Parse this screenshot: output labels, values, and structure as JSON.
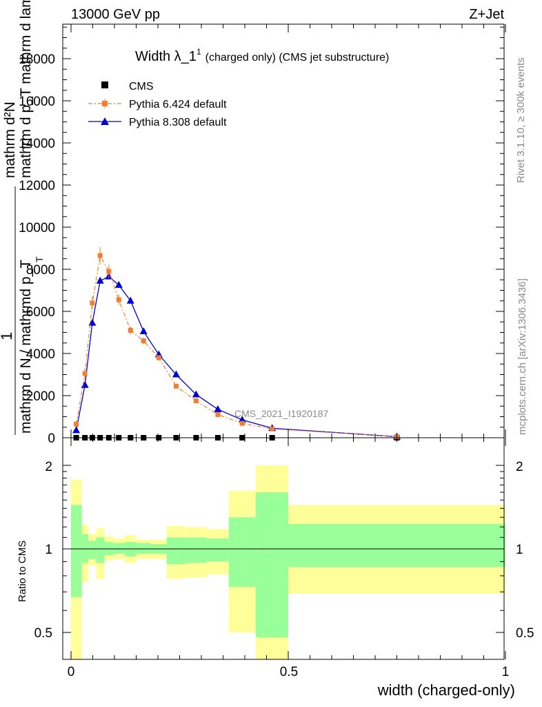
{
  "header": {
    "left": "13000 GeV pp",
    "right": "Z+Jet"
  },
  "side": {
    "rivet": "Rivet 3.1.10, ≥ 300k events",
    "mcplots": "mcplots.cern.ch [arXiv:1306.3436]"
  },
  "main": {
    "title_main": "Width λ_1",
    "title_sup": "1",
    "title_suffix": "(charged only) (CMS jet substructure)",
    "ylabel_one": "1",
    "ylabel_top": "mathrm dN / mathrmd p_T mathrm d lambda",
    "ylabel_top_line1": "mathrm d²N",
    "ylabel_top_line2": "mathrm d p_T mathrm d lambda",
    "ylabel_bottom": "mathrm d N / mathrmd p_T",
    "ylabel_bottom_sub": "T",
    "watermark": "CMS_2021_I1920187",
    "yticks": [
      "0",
      "2000",
      "4000",
      "6000",
      "8000",
      "10000",
      "12000",
      "14000",
      "16000",
      "18000"
    ]
  },
  "legend": {
    "cms": "CMS",
    "py6": "Pythia 6.424 default",
    "py8": "Pythia 8.308 default"
  },
  "ratio": {
    "ylabel": "Ratio to CMS",
    "yticks": [
      "0.5",
      "1",
      "2"
    ]
  },
  "xaxis": {
    "label": "width (charged-only)",
    "ticks": [
      "0",
      "0.5",
      "1"
    ]
  },
  "colors": {
    "cms": "#000000",
    "py6": "#f07f30",
    "py8": "#0000d0",
    "band_inner": "#99ff99",
    "band_outer": "#ffff99"
  },
  "chart_data": {
    "type": "line",
    "xlim": [
      0,
      1
    ],
    "ylim": [
      0,
      19600
    ],
    "ratio_ylim": [
      0.4,
      2.3
    ],
    "bins": [
      {
        "lo": 0.0,
        "hi": 0.025,
        "cms": 0
      },
      {
        "lo": 0.025,
        "hi": 0.04,
        "cms": 0
      },
      {
        "lo": 0.04,
        "hi": 0.058,
        "cms": 0
      },
      {
        "lo": 0.058,
        "hi": 0.077,
        "cms": 0
      },
      {
        "lo": 0.077,
        "hi": 0.098,
        "cms": 0
      },
      {
        "lo": 0.098,
        "hi": 0.123,
        "cms": 0
      },
      {
        "lo": 0.123,
        "hi": 0.15,
        "cms": 0
      },
      {
        "lo": 0.15,
        "hi": 0.183,
        "cms": 0
      },
      {
        "lo": 0.183,
        "hi": 0.22,
        "cms": 0
      },
      {
        "lo": 0.22,
        "hi": 0.264,
        "cms": 0
      },
      {
        "lo": 0.264,
        "hi": 0.312,
        "cms": 0
      },
      {
        "lo": 0.312,
        "hi": 0.363,
        "cms": 0
      },
      {
        "lo": 0.363,
        "hi": 0.425,
        "cms": 0
      },
      {
        "lo": 0.425,
        "hi": 0.5,
        "cms": 0
      },
      {
        "lo": 0.5,
        "hi": 1.0,
        "cms": 0
      }
    ],
    "series": [
      {
        "name": "Pythia 6.424 default",
        "x": [
          0.012,
          0.032,
          0.049,
          0.067,
          0.087,
          0.11,
          0.137,
          0.167,
          0.202,
          0.242,
          0.288,
          0.338,
          0.394,
          0.463,
          0.75
        ],
        "y": [
          650,
          3050,
          6400,
          8650,
          7900,
          6550,
          5100,
          4600,
          3800,
          2450,
          1750,
          1100,
          680,
          420,
          50
        ],
        "yerr": [
          90,
          250,
          320,
          400,
          320,
          250,
          200,
          170,
          140,
          100,
          80,
          60,
          40,
          30,
          10
        ]
      },
      {
        "name": "Pythia 8.308 default",
        "x": [
          0.012,
          0.032,
          0.049,
          0.067,
          0.087,
          0.11,
          0.137,
          0.167,
          0.202,
          0.242,
          0.288,
          0.338,
          0.394,
          0.463,
          0.75
        ],
        "y": [
          350,
          2500,
          5450,
          7450,
          7650,
          7250,
          6500,
          5050,
          3950,
          3000,
          2050,
          1350,
          850,
          450,
          50
        ]
      },
      {
        "name": "CMS",
        "x": [
          0.012,
          0.032,
          0.049,
          0.067,
          0.087,
          0.11,
          0.137,
          0.167,
          0.202,
          0.242,
          0.288,
          0.338,
          0.394,
          0.463,
          0.75
        ],
        "y": [
          0,
          0,
          0,
          0,
          0,
          0,
          0,
          0,
          0,
          0,
          0,
          0,
          0,
          0,
          0
        ]
      }
    ],
    "ratio_bands": [
      {
        "lo": 0.0,
        "hi": 0.025,
        "inner": [
          0.67,
          1.44
        ],
        "outer": [
          0.3,
          1.78
        ]
      },
      {
        "lo": 0.025,
        "hi": 0.04,
        "inner": [
          0.89,
          1.13
        ],
        "outer": [
          0.76,
          1.22
        ]
      },
      {
        "lo": 0.04,
        "hi": 0.058,
        "inner": [
          0.92,
          1.07
        ],
        "outer": [
          0.87,
          1.13
        ]
      },
      {
        "lo": 0.058,
        "hi": 0.077,
        "inner": [
          0.89,
          1.1
        ],
        "outer": [
          0.78,
          1.19
        ]
      },
      {
        "lo": 0.077,
        "hi": 0.098,
        "inner": [
          0.95,
          1.06
        ],
        "outer": [
          0.91,
          1.11
        ]
      },
      {
        "lo": 0.098,
        "hi": 0.123,
        "inner": [
          0.96,
          1.05
        ],
        "outer": [
          0.92,
          1.09
        ]
      },
      {
        "lo": 0.123,
        "hi": 0.15,
        "inner": [
          0.94,
          1.06
        ],
        "outer": [
          0.89,
          1.12
        ]
      },
      {
        "lo": 0.15,
        "hi": 0.183,
        "inner": [
          0.96,
          1.05
        ],
        "outer": [
          0.92,
          1.08
        ]
      },
      {
        "lo": 0.183,
        "hi": 0.22,
        "inner": [
          0.96,
          1.04
        ],
        "outer": [
          0.92,
          1.08
        ]
      },
      {
        "lo": 0.22,
        "hi": 0.264,
        "inner": [
          0.88,
          1.1
        ],
        "outer": [
          0.78,
          1.21
        ]
      },
      {
        "lo": 0.264,
        "hi": 0.312,
        "inner": [
          0.89,
          1.1
        ],
        "outer": [
          0.79,
          1.2
        ]
      },
      {
        "lo": 0.312,
        "hi": 0.363,
        "inner": [
          0.9,
          1.09
        ],
        "outer": [
          0.81,
          1.18
        ]
      },
      {
        "lo": 0.363,
        "hi": 0.425,
        "inner": [
          0.73,
          1.3
        ],
        "outer": [
          0.5,
          1.62
        ]
      },
      {
        "lo": 0.425,
        "hi": 0.5,
        "inner": [
          0.48,
          1.6
        ],
        "outer": [
          0.3,
          2.0
        ]
      },
      {
        "lo": 0.5,
        "hi": 1.0,
        "inner": [
          0.86,
          1.23
        ],
        "outer": [
          0.69,
          1.44
        ]
      }
    ]
  }
}
